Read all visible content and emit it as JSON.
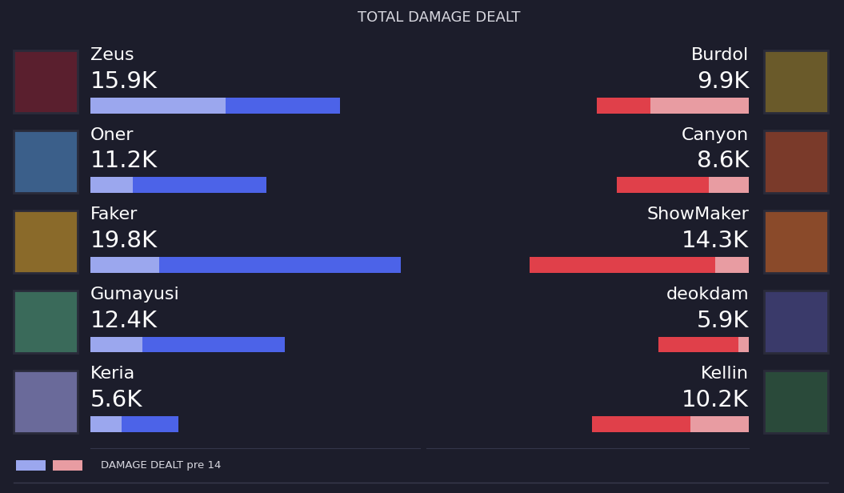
{
  "title": "TOTAL DAMAGE DEALT",
  "chart_data": [
    {
      "type": "bar",
      "orientation": "horizontal",
      "data_labels": true,
      "tick_labels": false,
      "categories": [
        "Zeus",
        "Oner",
        "Faker",
        "Gumayusi",
        "Keria"
      ],
      "xlim": [
        0,
        21000
      ],
      "series": [
        {
          "values": [
            15900,
            11200,
            19800,
            12400,
            5600
          ],
          "value_labels": [
            "15.9K",
            "11.2K",
            "19.8K",
            "12.4K",
            "5.6K"
          ],
          "color": "#4c63e8"
        },
        {
          "name": "DAMAGE DEALT pre 14",
          "values": [
            8600,
            2700,
            4400,
            3300,
            2000
          ],
          "color": "#9ba7ee"
        }
      ]
    },
    {
      "type": "bar",
      "orientation": "horizontal",
      "data_labels": true,
      "tick_labels": false,
      "categories": [
        "Burdol",
        "Canyon",
        "ShowMaker",
        "deokdam",
        "Kellin"
      ],
      "xlim": [
        21000,
        0
      ],
      "series": [
        {
          "values": [
            9900,
            8600,
            14300,
            5900,
            10200
          ],
          "value_labels": [
            "9.9K",
            "8.6K",
            "14.3K",
            "5.9K",
            "10.2K"
          ],
          "color": "#e0404a"
        },
        {
          "values": [
            6400,
            2600,
            2200,
            700,
            3800
          ],
          "color": "#e89ca2"
        }
      ]
    }
  ]
}
